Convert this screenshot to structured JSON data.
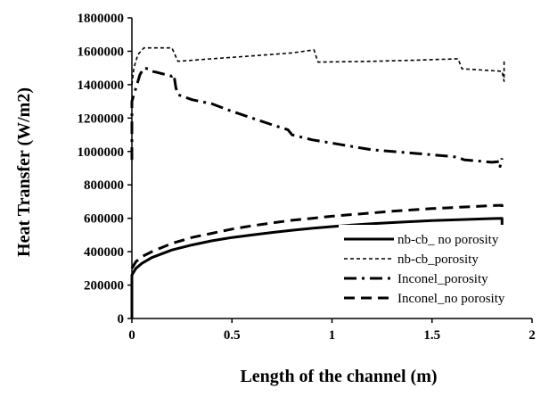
{
  "chart_data": {
    "type": "line",
    "title": "",
    "xlabel": "Length of the channel (m)",
    "ylabel": "Heat Transfer  (W/m2)",
    "xlim": [
      0,
      2
    ],
    "ylim": [
      0,
      1800000
    ],
    "x_ticks": [
      "0",
      "0.5",
      "1",
      "1.5",
      "2"
    ],
    "y_ticks": [
      "0",
      "200000",
      "400000",
      "600000",
      "800000",
      "1000000",
      "1200000",
      "1400000",
      "1600000",
      "1800000"
    ],
    "grid": false,
    "legend_position": "bottom-right",
    "series": [
      {
        "name": "nb-cb_ no porosity",
        "style": "solid",
        "points": [
          [
            0,
            0
          ],
          [
            0,
            260000
          ],
          [
            0.02,
            300000
          ],
          [
            0.05,
            330000
          ],
          [
            0.1,
            365000
          ],
          [
            0.2,
            410000
          ],
          [
            0.3,
            440000
          ],
          [
            0.4,
            465000
          ],
          [
            0.5,
            485000
          ],
          [
            0.6,
            500000
          ],
          [
            0.7,
            515000
          ],
          [
            0.8,
            528000
          ],
          [
            0.9,
            540000
          ],
          [
            1.0,
            550000
          ],
          [
            1.1,
            560000
          ],
          [
            1.2,
            567000
          ],
          [
            1.3,
            574000
          ],
          [
            1.4,
            580000
          ],
          [
            1.5,
            586000
          ],
          [
            1.6,
            590000
          ],
          [
            1.7,
            594000
          ],
          [
            1.8,
            598000
          ],
          [
            1.85,
            600000
          ],
          [
            1.85,
            550000
          ]
        ]
      },
      {
        "name": "nb-cb_porosity",
        "style": "dotted",
        "points": [
          [
            0,
            1400000
          ],
          [
            0.01,
            1500000
          ],
          [
            0.03,
            1580000
          ],
          [
            0.06,
            1620000
          ],
          [
            0.2,
            1620000
          ],
          [
            0.23,
            1540000
          ],
          [
            0.4,
            1555000
          ],
          [
            0.6,
            1572000
          ],
          [
            0.8,
            1590000
          ],
          [
            0.91,
            1608000
          ],
          [
            0.93,
            1535000
          ],
          [
            1.2,
            1540000
          ],
          [
            1.4,
            1546000
          ],
          [
            1.63,
            1555000
          ],
          [
            1.65,
            1495000
          ],
          [
            1.85,
            1480000
          ],
          [
            1.86,
            1420000
          ],
          [
            1.86,
            1550000
          ]
        ]
      },
      {
        "name": "Inconel_porosity",
        "style": "dash-dot",
        "points": [
          [
            0,
            950000
          ],
          [
            0,
            1300000
          ],
          [
            0.01,
            1340000
          ],
          [
            0.02,
            1380000
          ],
          [
            0.04,
            1460000
          ],
          [
            0.06,
            1500000
          ],
          [
            0.08,
            1495000
          ],
          [
            0.1,
            1480000
          ],
          [
            0.12,
            1475000
          ],
          [
            0.2,
            1450000
          ],
          [
            0.21,
            1460000
          ],
          [
            0.22,
            1380000
          ],
          [
            0.23,
            1340000
          ],
          [
            0.3,
            1310000
          ],
          [
            0.4,
            1285000
          ],
          [
            0.5,
            1240000
          ],
          [
            0.6,
            1200000
          ],
          [
            0.7,
            1160000
          ],
          [
            0.78,
            1130000
          ],
          [
            0.8,
            1100000
          ],
          [
            0.9,
            1070000
          ],
          [
            1.0,
            1050000
          ],
          [
            1.1,
            1030000
          ],
          [
            1.2,
            1010000
          ],
          [
            1.4,
            990000
          ],
          [
            1.6,
            970000
          ],
          [
            1.63,
            965000
          ],
          [
            1.66,
            950000
          ],
          [
            1.8,
            935000
          ],
          [
            1.84,
            940000
          ],
          [
            1.84,
            910000
          ],
          [
            1.85,
            960000
          ]
        ]
      },
      {
        "name": "Inconel_no porosity",
        "style": "dashed",
        "points": [
          [
            0,
            300000
          ],
          [
            0.02,
            340000
          ],
          [
            0.05,
            370000
          ],
          [
            0.1,
            400000
          ],
          [
            0.2,
            450000
          ],
          [
            0.3,
            485000
          ],
          [
            0.4,
            510000
          ],
          [
            0.5,
            535000
          ],
          [
            0.6,
            555000
          ],
          [
            0.7,
            572000
          ],
          [
            0.8,
            588000
          ],
          [
            0.9,
            600000
          ],
          [
            1.0,
            612000
          ],
          [
            1.1,
            622000
          ],
          [
            1.2,
            632000
          ],
          [
            1.3,
            642000
          ],
          [
            1.4,
            650000
          ],
          [
            1.5,
            658000
          ],
          [
            1.6,
            664000
          ],
          [
            1.7,
            670000
          ],
          [
            1.8,
            676000
          ],
          [
            1.85,
            678000
          ],
          [
            1.85,
            640000
          ]
        ]
      }
    ]
  }
}
